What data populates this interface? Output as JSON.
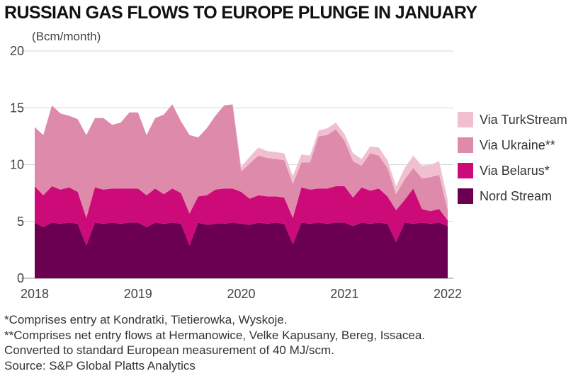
{
  "title": "RUSSIAN GAS FLOWS TO EUROPE PLUNGE IN JANUARY",
  "unit_label": "(Bcm/month)",
  "notes": [
    "*Comprises entry at Kondratki, Tietierowka, Wyskoje.",
    "**Comprises net entry flows at Hermanowice, Velke Kapusany, Bereg, Issacea.",
    "Converted to standard European measurement of 40 MJ/scm.",
    "Source: S&P Global Platts Analytics"
  ],
  "chart_data": {
    "type": "area",
    "stacked": true,
    "title": "RUSSIAN GAS FLOWS TO EUROPE PLUNGE IN JANUARY",
    "ylabel": "(Bcm/month)",
    "ylim": [
      0,
      20
    ],
    "yticks": [
      0,
      5,
      10,
      15,
      20
    ],
    "xticks": [
      "2018",
      "2019",
      "2020",
      "2021",
      "2022"
    ],
    "grid": true,
    "legend_position": "right",
    "x": [
      "2018-01",
      "2018-02",
      "2018-03",
      "2018-04",
      "2018-05",
      "2018-06",
      "2018-07",
      "2018-08",
      "2018-09",
      "2018-10",
      "2018-11",
      "2018-12",
      "2019-01",
      "2019-02",
      "2019-03",
      "2019-04",
      "2019-05",
      "2019-06",
      "2019-07",
      "2019-08",
      "2019-09",
      "2019-10",
      "2019-11",
      "2019-12",
      "2020-01",
      "2020-02",
      "2020-03",
      "2020-04",
      "2020-05",
      "2020-06",
      "2020-07",
      "2020-08",
      "2020-09",
      "2020-10",
      "2020-11",
      "2020-12",
      "2021-01",
      "2021-02",
      "2021-03",
      "2021-04",
      "2021-05",
      "2021-06",
      "2021-07",
      "2021-08",
      "2021-09",
      "2021-10",
      "2021-11",
      "2021-12",
      "2022-01"
    ],
    "series": [
      {
        "name": "Nord Stream",
        "color": "#6b0050",
        "values": [
          4.9,
          4.5,
          4.9,
          4.8,
          4.9,
          4.8,
          2.9,
          4.9,
          4.8,
          4.9,
          4.8,
          4.9,
          4.9,
          4.5,
          4.9,
          4.8,
          4.9,
          4.8,
          2.9,
          4.9,
          4.7,
          4.8,
          4.8,
          4.9,
          4.8,
          4.7,
          4.9,
          4.8,
          4.9,
          4.8,
          3.0,
          4.9,
          4.8,
          4.9,
          4.8,
          4.9,
          4.9,
          4.6,
          4.9,
          4.8,
          4.9,
          4.8,
          3.2,
          4.9,
          4.8,
          4.9,
          4.8,
          4.9,
          4.6
        ]
      },
      {
        "name": "Via Belarus*",
        "color": "#cc0a78",
        "values": [
          3.2,
          2.8,
          3.2,
          3.0,
          3.1,
          2.8,
          2.4,
          3.1,
          3.0,
          3.0,
          3.1,
          3.0,
          3.0,
          2.8,
          3.0,
          2.6,
          3.0,
          2.7,
          2.8,
          2.3,
          2.6,
          3.0,
          3.1,
          3.0,
          2.8,
          2.3,
          2.4,
          2.4,
          2.3,
          2.3,
          2.3,
          3.1,
          3.0,
          3.0,
          3.1,
          3.2,
          3.2,
          2.5,
          3.1,
          2.9,
          3.0,
          2.4,
          2.8,
          2.0,
          3.1,
          1.2,
          1.1,
          1.2,
          0.5
        ]
      },
      {
        "name": "Via Ukraine**",
        "color": "#de8aaa",
        "values": [
          5.2,
          5.3,
          7.1,
          6.7,
          6.3,
          6.4,
          7.3,
          6.1,
          6.3,
          5.6,
          5.8,
          6.7,
          6.7,
          5.3,
          6.2,
          7.0,
          7.4,
          6.3,
          6.9,
          5.2,
          5.9,
          6.5,
          7.3,
          7.4,
          1.8,
          3.1,
          3.5,
          3.4,
          3.3,
          3.3,
          3.0,
          2.2,
          2.4,
          4.6,
          4.7,
          5.0,
          4.0,
          3.2,
          1.9,
          3.3,
          2.9,
          2.5,
          1.4,
          1.8,
          1.8,
          2.7,
          3.0,
          3.0,
          0.9
        ]
      },
      {
        "name": "Via TurkStream",
        "color": "#f0bfd0",
        "values": [
          0,
          0,
          0,
          0,
          0,
          0,
          0,
          0,
          0,
          0,
          0,
          0,
          0,
          0,
          0,
          0,
          0,
          0,
          0,
          0,
          0,
          0,
          0,
          0,
          0.4,
          0.6,
          0.7,
          0.6,
          0.6,
          0.6,
          0.7,
          0.7,
          0.6,
          0.5,
          0.6,
          0.6,
          0.6,
          0.7,
          0.6,
          0.6,
          0.7,
          0.7,
          0.7,
          1.0,
          1.1,
          1.1,
          1.1,
          1.2,
          0.9
        ]
      }
    ],
    "legend": [
      "Via TurkStream",
      "Via Ukraine**",
      "Via Belarus*",
      "Nord Stream"
    ]
  }
}
